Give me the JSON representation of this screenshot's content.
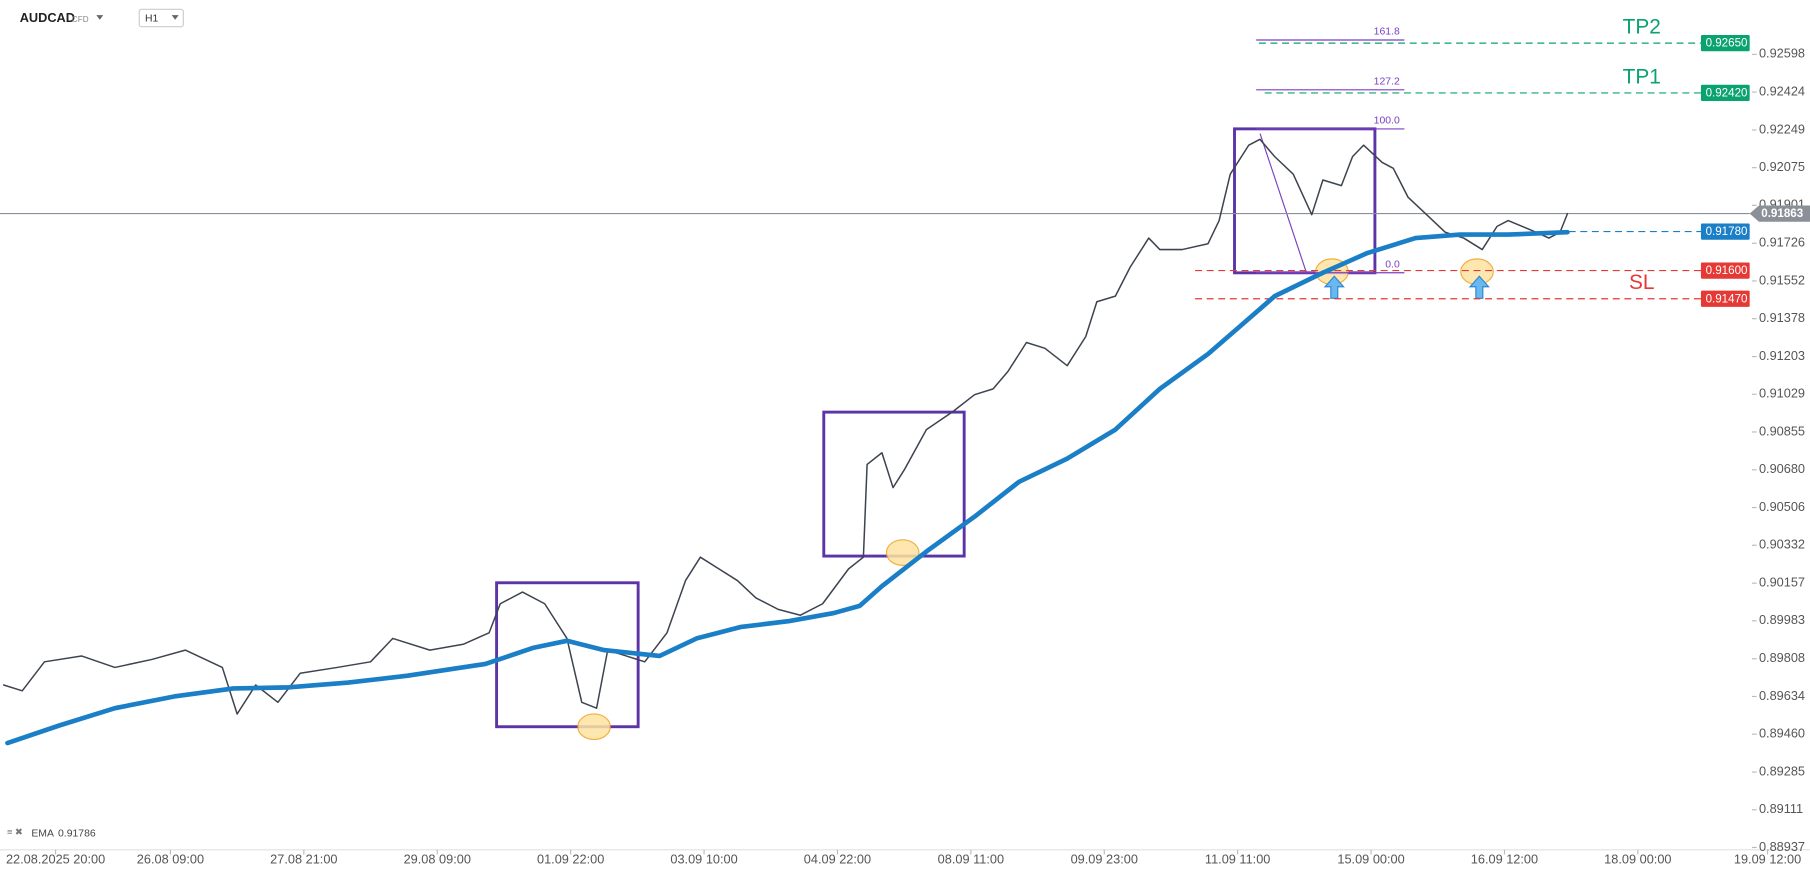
{
  "chart_data": {
    "type": "line",
    "symbol": "AUDCAD",
    "instrument": "CFD",
    "timeframe": "H1",
    "xlim": [
      -15,
      465
    ],
    "ylim": [
      0.88937,
      0.92849
    ],
    "xticks": [
      {
        "value": 0,
        "label": "22.08.2025  20:00"
      },
      {
        "value": 31,
        "label": "26.08  09:00"
      },
      {
        "value": 67,
        "label": "27.08  21:00"
      },
      {
        "value": 103,
        "label": "29.08  09:00"
      },
      {
        "value": 139,
        "label": "01.09  22:00"
      },
      {
        "value": 175,
        "label": "03.09  10:00"
      },
      {
        "value": 211,
        "label": "04.09  22:00"
      },
      {
        "value": 247,
        "label": "08.09  11:00"
      },
      {
        "value": 283,
        "label": "09.09  23:00"
      },
      {
        "value": 319,
        "label": "11.09  11:00"
      },
      {
        "value": 355,
        "label": "15.09  00:00"
      },
      {
        "value": 391,
        "label": "16.09  12:00"
      },
      {
        "value": 427,
        "label": "18.09  00:00"
      },
      {
        "value": 462,
        "label": "19.09  12:00"
      }
    ],
    "yticks": [
      0.92598,
      0.92424,
      0.92249,
      0.92075,
      0.91901,
      0.91726,
      0.91552,
      0.91378,
      0.91203,
      0.91029,
      0.90855,
      {
        "value": 0.9068,
        "label": "0.90680"
      },
      0.90506,
      0.90332,
      0.90157,
      0.89983,
      0.89808,
      0.89634,
      {
        "value": 0.8946,
        "label": "0.89460"
      },
      0.89285,
      0.89111,
      0.88937
    ],
    "series": [
      {
        "name": "AUDCAD",
        "color": "#3d4450",
        "x": [
          -14,
          -9,
          -3,
          7,
          16,
          26,
          35,
          45,
          49,
          54,
          60,
          66,
          76,
          85,
          91,
          101,
          110,
          117,
          120,
          126,
          132,
          138,
          142,
          146,
          149,
          154,
          159,
          165,
          170,
          174,
          179,
          184,
          189,
          195,
          201,
          207,
          214,
          218,
          219,
          223,
          226,
          229,
          235,
          242,
          248,
          253,
          257,
          262,
          267,
          273,
          278,
          281,
          286,
          290,
          295,
          298,
          304,
          311,
          314,
          317,
          322,
          325,
          329,
          334,
          339,
          342,
          347,
          350,
          353,
          358,
          361,
          365,
          370,
          375,
          380,
          385,
          389,
          392,
          398,
          403,
          406,
          408
        ],
        "values": [
          0.89687,
          0.8966,
          0.89794,
          0.89821,
          0.89768,
          0.89805,
          0.89848,
          0.89768,
          0.89553,
          0.89687,
          0.89607,
          0.89741,
          0.89768,
          0.89794,
          0.89902,
          0.89848,
          0.89875,
          0.89928,
          0.90062,
          0.90116,
          0.90062,
          0.89902,
          0.89607,
          0.8958,
          0.89848,
          0.89821,
          0.89794,
          0.89928,
          0.90169,
          0.90277,
          0.90223,
          0.90169,
          0.90089,
          0.90036,
          0.90009,
          0.90062,
          0.90223,
          0.90277,
          0.90705,
          0.90759,
          0.90598,
          0.90679,
          0.90866,
          0.90947,
          0.91027,
          0.91054,
          0.91134,
          0.91268,
          0.91241,
          0.91161,
          0.91295,
          0.91456,
          0.91482,
          0.91616,
          0.9175,
          0.91697,
          0.91697,
          0.91724,
          0.91831,
          0.92045,
          0.92179,
          0.92206,
          0.92126,
          0.92045,
          0.91858,
          0.92018,
          0.91992,
          0.92126,
          0.92179,
          0.92099,
          0.92072,
          0.91938,
          0.91858,
          0.91777,
          0.9175,
          0.91697,
          0.91804,
          0.91831,
          0.91788,
          0.9175,
          0.91777,
          0.91863
        ]
      },
      {
        "name": "EMA",
        "color": "#1a7fc6",
        "last_value": 0.91786,
        "x": [
          -13,
          1,
          16,
          32,
          48,
          63,
          79,
          95,
          116,
          129,
          138,
          148,
          163,
          173,
          185,
          198,
          210,
          217,
          223,
          235,
          248,
          260,
          273,
          286,
          298,
          311,
          320,
          329,
          342,
          354,
          367,
          379,
          392,
          408
        ],
        "values": [
          0.89419,
          0.895,
          0.8958,
          0.89634,
          0.89671,
          0.89676,
          0.89698,
          0.8973,
          0.89784,
          0.89859,
          0.89891,
          0.89848,
          0.89821,
          0.89902,
          0.89955,
          0.89982,
          0.90019,
          0.90052,
          0.90143,
          0.90303,
          0.90464,
          0.90625,
          0.90732,
          0.90866,
          0.91054,
          0.91215,
          0.91348,
          0.91482,
          0.9159,
          0.91681,
          0.9175,
          0.91766,
          0.91766,
          0.91777
        ]
      }
    ],
    "levels": [
      {
        "value": 0.9265,
        "label": "0.92650",
        "name": "TP2",
        "color": "#0aa36f",
        "style": "dashed"
      },
      {
        "value": 0.9242,
        "label": "0.92420",
        "name": "TP1",
        "color": "#0aa36f",
        "style": "dashed"
      },
      {
        "value": 0.91863,
        "label": "0.91863",
        "color": "#8a8f98",
        "style": "solid"
      },
      {
        "value": 0.9178,
        "label": "0.91780",
        "color": "#1a7fc6",
        "style": "dashed"
      },
      {
        "value": 0.916,
        "label": "0.91600",
        "color": "#e53935",
        "style": "dashed"
      },
      {
        "value": 0.9147,
        "label": "0.91470",
        "name": "SL",
        "color": "#e53935",
        "style": "dashed"
      }
    ],
    "fib": {
      "color": "#7b3fc4",
      "low": 0.9159,
      "high": 0.92254,
      "x": [
        324,
        364
      ],
      "levels": [
        161.8,
        127.2,
        {
          "value": 100,
          "label": "100.0"
        },
        {
          "value": 0,
          "label": "0.0"
        }
      ]
    }
  }
}
